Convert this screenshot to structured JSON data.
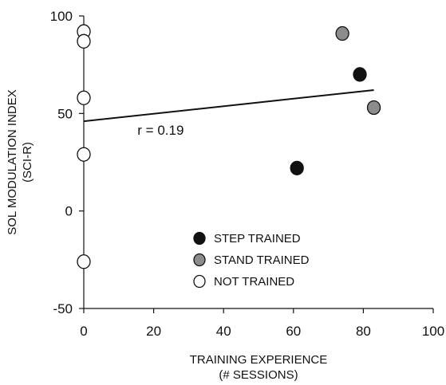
{
  "chart_data": {
    "type": "scatter",
    "xlabel": [
      "TRAINING EXPERIENCE",
      "(# SESSIONS)"
    ],
    "ylabel": [
      "SOL MODULATION INDEX",
      "(SCI-R)"
    ],
    "xlim": [
      0,
      100
    ],
    "ylim": [
      -50,
      100
    ],
    "xticks": [
      0,
      20,
      40,
      60,
      80,
      100
    ],
    "yticks": [
      -50,
      0,
      50,
      100
    ],
    "grid": false,
    "legend_position": "lower-center",
    "series": [
      {
        "name": "STEP TRAINED",
        "color": "#111111",
        "points": [
          [
            79,
            70
          ],
          [
            61,
            22
          ]
        ]
      },
      {
        "name": "STAND TRAINED",
        "color": "#8c8c8c",
        "points": [
          [
            74,
            91
          ],
          [
            83,
            53
          ]
        ]
      },
      {
        "name": "NOT TRAINED",
        "color": "#ffffff",
        "points": [
          [
            0,
            92
          ],
          [
            0,
            87
          ],
          [
            0,
            58
          ],
          [
            0,
            29
          ],
          [
            0,
            -26
          ]
        ]
      }
    ],
    "regression": {
      "x": [
        0,
        83
      ],
      "y": [
        46,
        62
      ]
    },
    "annotations": [
      {
        "text": "r = 0.19",
        "x": 22,
        "y": 39
      }
    ]
  }
}
